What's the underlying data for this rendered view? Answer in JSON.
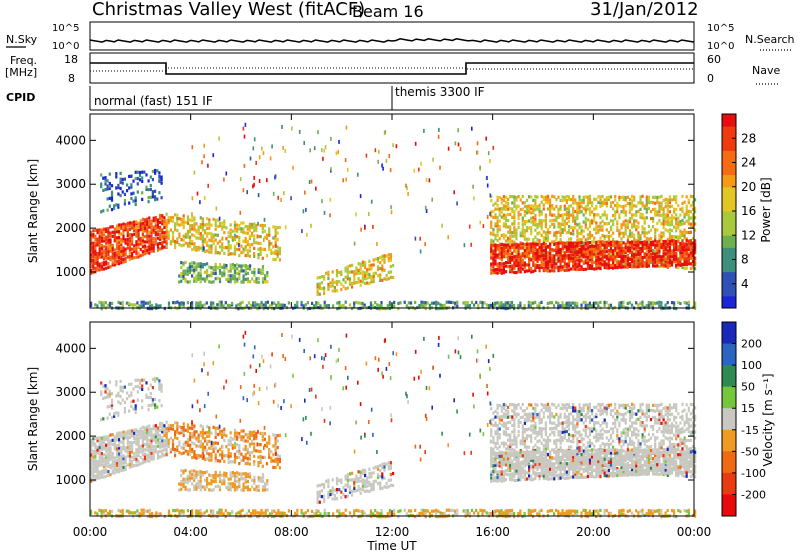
{
  "header": {
    "title": "Christmas Valley West (fitACF)",
    "beam": "Beam 16",
    "date": "31/Jan/2012"
  },
  "panels": {
    "nsky": {
      "left_label": "N.Sky",
      "left_ticks": [
        "10^5",
        "10^0"
      ],
      "right_ticks": [
        "10^5",
        "10^0"
      ],
      "right_label": "N.Search"
    },
    "freq": {
      "left_label_1": "Freq.",
      "left_label_2": "[MHz]",
      "left_ticks": [
        "18",
        "8"
      ],
      "right_ticks": [
        "60",
        "0"
      ],
      "right_label": "Nave"
    },
    "cpid": {
      "label": "CPID",
      "modes": [
        "normal (fast) 151 IF",
        "themis 3300 IF"
      ]
    }
  },
  "chart_data": [
    {
      "type": "heatmap",
      "name": "Power",
      "ylabel": "Slant Range [km]",
      "xlabel": "Time UT",
      "x_ticks": [
        "00:00",
        "04:00",
        "08:00",
        "12:00",
        "16:00",
        "20:00",
        "00:00"
      ],
      "x_range_hours": [
        0,
        24
      ],
      "y_ticks": [
        1000,
        2000,
        3000,
        4000
      ],
      "ylim": [
        180,
        4600
      ],
      "colorbar": {
        "label": "Power [dB]",
        "ticks": [
          4,
          8,
          12,
          16,
          20,
          24,
          28
        ],
        "colors": [
          "#1a25d9",
          "#2f50b5",
          "#3d8e7a",
          "#6faf50",
          "#a8c93b",
          "#e2c623",
          "#f69a16",
          "#f46b12",
          "#ef3a10",
          "#e60d0d"
        ]
      }
    },
    {
      "type": "heatmap",
      "name": "Velocity",
      "ylabel": "Slant Range [km]",
      "xlabel": "Time UT",
      "x_ticks": [
        "00:00",
        "04:00",
        "08:00",
        "12:00",
        "16:00",
        "20:00",
        "00:00"
      ],
      "x_range_hours": [
        0,
        24
      ],
      "y_ticks": [
        1000,
        2000,
        3000,
        4000
      ],
      "ylim": [
        180,
        4600
      ],
      "colorbar": {
        "label": "Velocity [m s⁻¹]",
        "ticks": [
          200,
          100,
          50,
          15,
          -15,
          -50,
          -100,
          -200
        ],
        "colors": [
          "#1828b8",
          "#2c64c2",
          "#2e8a4f",
          "#74c63c",
          "#c8c8c0",
          "#ef9a22",
          "#f06a14",
          "#ea3a12",
          "#e60a0a"
        ]
      }
    }
  ]
}
